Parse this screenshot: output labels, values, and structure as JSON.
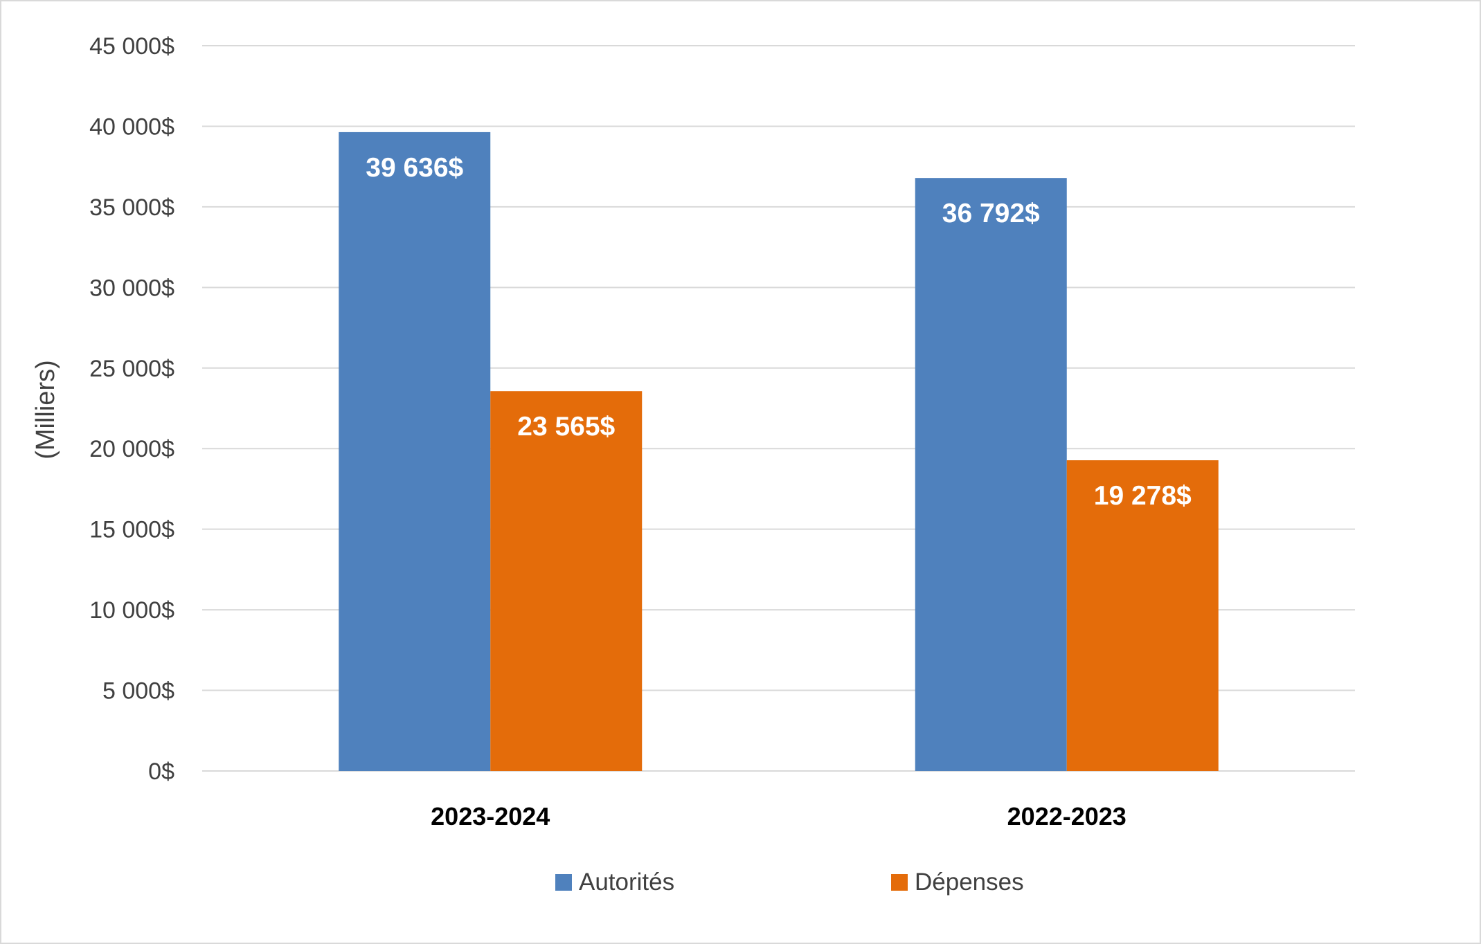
{
  "chart_data": {
    "type": "bar",
    "categories": [
      "2023-2024",
      "2022-2023"
    ],
    "series": [
      {
        "name": "Autorités",
        "values": [
          39636,
          36792
        ],
        "labels": [
          "39 636$",
          "36 792$"
        ],
        "color": "#4f81bd"
      },
      {
        "name": "Dépenses",
        "values": [
          23565,
          19278
        ],
        "labels": [
          "23 565$",
          "19 278$"
        ],
        "color": "#e46c0a"
      }
    ],
    "ylabel": "(Milliers)",
    "ylim": [
      0,
      45000
    ],
    "yticks": [
      0,
      5000,
      10000,
      15000,
      20000,
      25000,
      30000,
      35000,
      40000,
      45000
    ],
    "ytick_labels": [
      "0$",
      "5 000$",
      "10 000$",
      "15 000$",
      "20 000$",
      "25 000$",
      "30 000$",
      "35 000$",
      "40 000$",
      "45 000$"
    ],
    "grid": true,
    "legend_position": "bottom",
    "gridline_color": "#d9d9d9"
  }
}
